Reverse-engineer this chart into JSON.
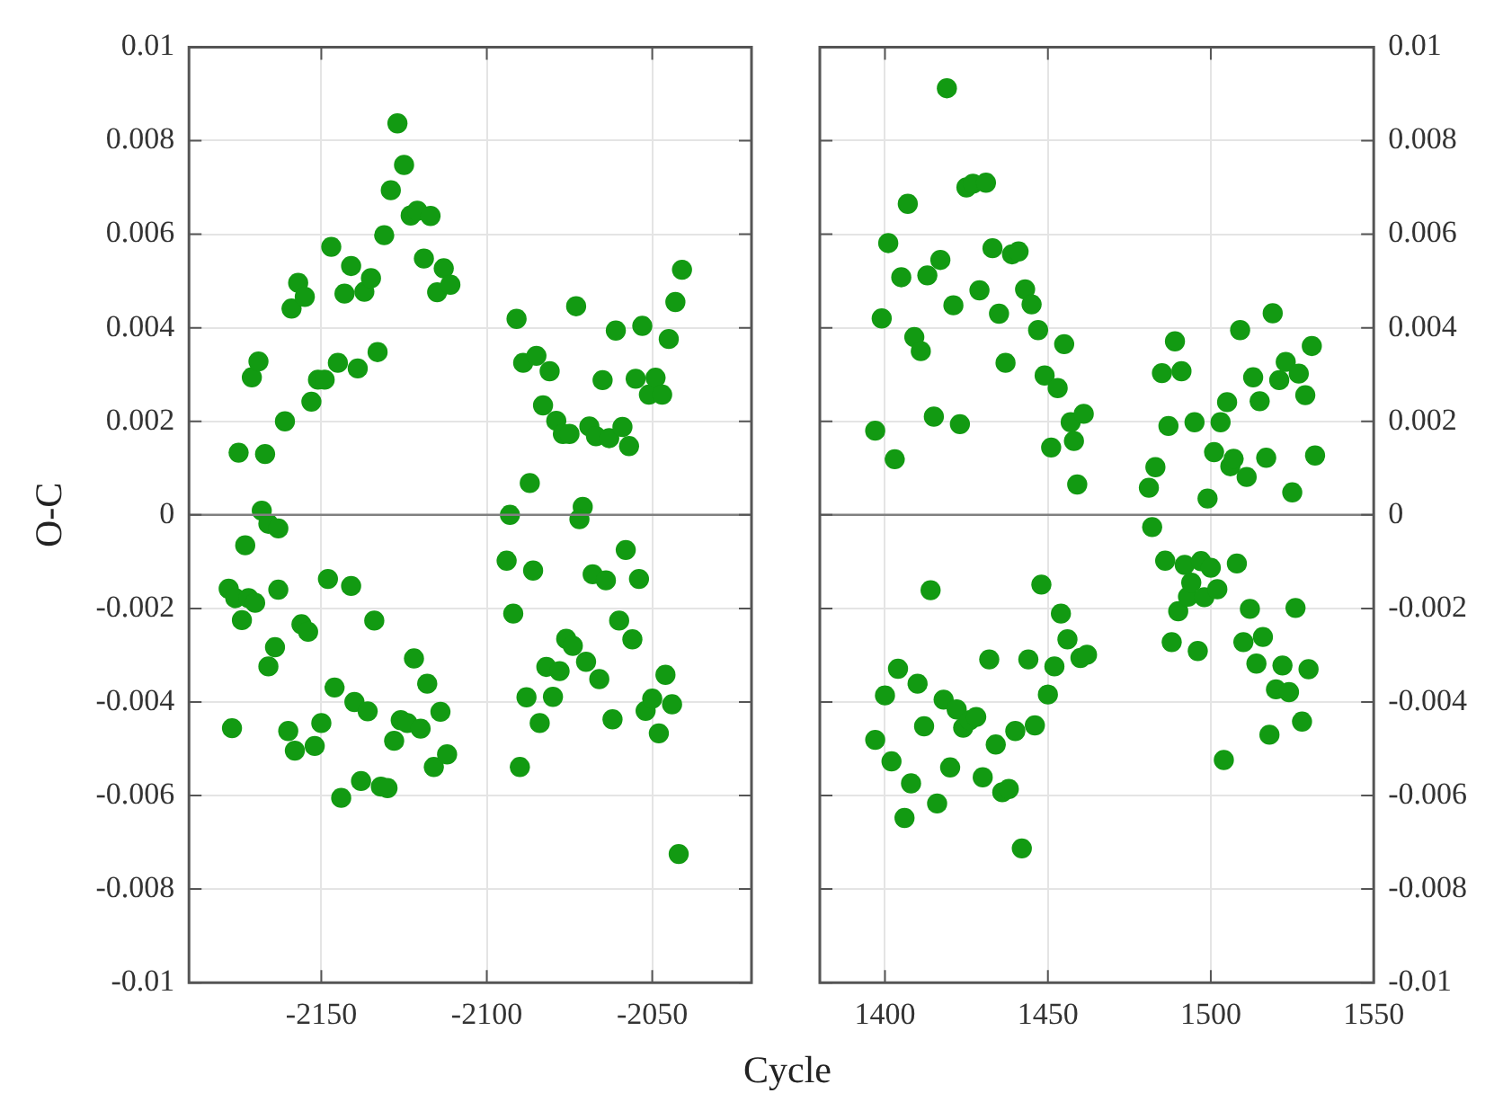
{
  "chart_data": [
    {
      "type": "scatter",
      "xlabel": "Cycle",
      "ylabel": "O-C",
      "marker": "circle",
      "grid": true,
      "xlim": [
        -2190,
        -2020
      ],
      "xticks": [
        -2150,
        -2100,
        -2050
      ],
      "ylim": [
        -0.01,
        0.01
      ],
      "yticks": [
        -0.01,
        -0.008,
        -0.006,
        -0.004,
        -0.002,
        0,
        0.002,
        0.004,
        0.006,
        0.008,
        0.01
      ],
      "ref_lines": [
        {
          "axis": "y",
          "value": 0,
          "color": "#808080"
        }
      ],
      "series": [
        {
          "color": "#129a12",
          "x": [
            -2175,
            -2171,
            -2169,
            -2167,
            -2168,
            -2161,
            -2159,
            -2157,
            -2155,
            -2153,
            -2151,
            -2149,
            -2147,
            -2145,
            -2143,
            -2141,
            -2139,
            -2137,
            -2135,
            -2133,
            -2131,
            -2129,
            -2127,
            -2125,
            -2123,
            -2121,
            -2119,
            -2117,
            -2115,
            -2113,
            -2111,
            -2093,
            -2091,
            -2089,
            -2087,
            -2085,
            -2083,
            -2081,
            -2079,
            -2077,
            -2075,
            -2073,
            -2071,
            -2069,
            -2067,
            -2065,
            -2063,
            -2061,
            -2059,
            -2057,
            -2055,
            -2053,
            -2051,
            -2049,
            -2047,
            -2045,
            -2043,
            -2041,
            -2166,
            -2163,
            -2173,
            -2178,
            -2176,
            -2172,
            -2170,
            -2174,
            -2163,
            -2164,
            -2166,
            -2177,
            -2160,
            -2158,
            -2156,
            -2154,
            -2152,
            -2150,
            -2148,
            -2146,
            -2144,
            -2141,
            -2140,
            -2138,
            -2136,
            -2134,
            -2132,
            -2130,
            -2128,
            -2126,
            -2124,
            -2122,
            -2120,
            -2118,
            -2116,
            -2114,
            -2112,
            -2094,
            -2092,
            -2090,
            -2088,
            -2086,
            -2084,
            -2082,
            -2080,
            -2078,
            -2076,
            -2074,
            -2072,
            -2070,
            -2068,
            -2066,
            -2064,
            -2062,
            -2060,
            -2058,
            -2056,
            -2054,
            -2052,
            -2050,
            -2048,
            -2046,
            -2044,
            -2042
          ],
          "values": [
            0.00133,
            0.00294,
            0.00328,
            0.0013,
            9e-05,
            0.002,
            0.00441,
            0.00496,
            0.00466,
            0.00242,
            0.00289,
            0.00289,
            0.00573,
            0.00325,
            0.00473,
            0.00532,
            0.00313,
            0.00477,
            0.00506,
            0.00348,
            0.00598,
            0.00694,
            0.00837,
            0.00748,
            0.0064,
            0.0065,
            0.00548,
            0.00639,
            0.00476,
            0.00527,
            0.00492,
            0,
            0.00419,
            0.00325,
            0.00068,
            0.0034,
            0.00234,
            0.00307,
            0.00201,
            0.00173,
            0.00173,
            0.00446,
            0.00017,
            0.00189,
            0.00168,
            0.00288,
            0.00164,
            0.00394,
            0.00188,
            0.00147,
            0.00291,
            0.00404,
            0.00257,
            0.00293,
            0.00257,
            0.00376,
            0.00455,
            0.00524,
            -0.00019,
            -0.00029,
            -0.00065,
            -0.00158,
            -0.00178,
            -0.00178,
            -0.00188,
            -0.00225,
            -0.0016,
            -0.00283,
            -0.00324,
            -0.00456,
            -0.00462,
            -0.00504,
            -0.00234,
            -0.0025,
            -0.00494,
            -0.00445,
            -0.00137,
            -0.00369,
            -0.00605,
            -0.00152,
            -0.004,
            -0.00569,
            -0.0042,
            -0.00226,
            -0.00581,
            -0.00584,
            -0.00483,
            -0.00439,
            -0.00445,
            -0.00307,
            -0.00457,
            -0.00361,
            -0.00539,
            -0.00421,
            -0.00512,
            -0.00098,
            -0.00211,
            -0.00539,
            -0.0039,
            -0.00119,
            -0.00445,
            -0.00325,
            -0.00389,
            -0.00334,
            -0.00265,
            -0.0028,
            -9e-05,
            -0.00314,
            -0.00127,
            -0.00351,
            -0.0014,
            -0.00437,
            -0.00226,
            -0.00075,
            -0.00266,
            -0.00137,
            -0.00419,
            -0.00393,
            -0.00467,
            -0.00342,
            -0.00405,
            -0.00725
          ]
        }
      ]
    },
    {
      "type": "scatter",
      "marker": "circle",
      "grid": true,
      "xlim": [
        1380,
        1550
      ],
      "xticks": [
        1400,
        1450,
        1500,
        1550
      ],
      "y2lim": [
        -0.01,
        0.01
      ],
      "y2ticks": [
        -0.01,
        -0.008,
        -0.006,
        -0.004,
        -0.002,
        0,
        0.002,
        0.004,
        0.006,
        0.008,
        0.01
      ],
      "ref_lines": [
        {
          "axis": "y2",
          "value": 0,
          "color": "#808080"
        }
      ],
      "series": [
        {
          "color": "#129a12",
          "axis": "y2",
          "x": [
            1397,
            1399,
            1401,
            1403,
            1405,
            1407,
            1409,
            1411,
            1413,
            1415,
            1417,
            1419,
            1421,
            1423,
            1425,
            1427,
            1429,
            1431,
            1433,
            1435,
            1437,
            1439,
            1441,
            1443,
            1445,
            1447,
            1449,
            1451,
            1453,
            1455,
            1457,
            1458,
            1459,
            1461,
            1481,
            1482,
            1483,
            1485,
            1487,
            1489,
            1491,
            1495,
            1499,
            1501,
            1503,
            1505,
            1506,
            1507,
            1509,
            1511,
            1513,
            1515,
            1517,
            1519,
            1521,
            1523,
            1525,
            1527,
            1529,
            1531,
            1532,
            1397,
            1400,
            1402,
            1404,
            1406,
            1408,
            1410,
            1412,
            1414,
            1416,
            1418,
            1420,
            1422,
            1424,
            1426,
            1428,
            1430,
            1432,
            1434,
            1436,
            1438,
            1440,
            1442,
            1444,
            1446,
            1448,
            1450,
            1452,
            1454,
            1456,
            1460,
            1462,
            1486,
            1488,
            1490,
            1492,
            1493,
            1494,
            1496,
            1497,
            1498,
            1500,
            1502,
            1504,
            1508,
            1510,
            1512,
            1514,
            1516,
            1518,
            1520,
            1522,
            1524,
            1526,
            1528,
            1530
          ],
          "values": [
            0.0018,
            0.0042,
            0.00581,
            0.00119,
            0.00508,
            0.00665,
            0.0038,
            0.0035,
            0.00512,
            0.0021,
            0.00545,
            0.00912,
            0.00448,
            0.00194,
            0.007,
            0.00708,
            0.0048,
            0.0071,
            0.0057,
            0.0043,
            0.00325,
            0.00557,
            0.00563,
            0.00482,
            0.0045,
            0.00395,
            0.00298,
            0.00144,
            0.00271,
            0.00365,
            0.00198,
            0.00158,
            0.00065,
            0.00216,
            0.00058,
            -0.00026,
            0.00102,
            0.00303,
            0.0019,
            0.00371,
            0.00307,
            0.00198,
            0.00035,
            0.00134,
            0.00198,
            0.00241,
            0.00104,
            0.0012,
            0.00395,
            0.00081,
            0.00294,
            0.00243,
            0.00122,
            0.00431,
            0.00288,
            0.00327,
            0.00048,
            0.00302,
            0.00256,
            0.00361,
            0.00127,
            -0.00481,
            -0.00386,
            -0.00527,
            -0.00329,
            -0.00648,
            -0.00574,
            -0.00361,
            -0.00452,
            -0.00161,
            -0.00617,
            -0.00395,
            -0.0054,
            -0.00416,
            -0.00455,
            -0.00439,
            -0.00432,
            -0.00561,
            -0.00309,
            -0.00491,
            -0.00593,
            -0.00586,
            -0.00462,
            -0.00713,
            -0.00309,
            -0.0045,
            -0.00149,
            -0.00384,
            -0.00324,
            -0.00211,
            -0.00266,
            -0.00306,
            -0.00299,
            -0.00098,
            -0.00272,
            -0.00206,
            -0.00107,
            -0.00175,
            -0.00145,
            -0.00291,
            -0.00099,
            -0.00176,
            -0.00113,
            -0.00159,
            -0.00524,
            -0.00104,
            -0.00272,
            -0.00201,
            -0.00318,
            -0.00261,
            -0.0047,
            -0.00373,
            -0.00322,
            -0.00379,
            -0.00199,
            -0.00442,
            -0.0033
          ]
        }
      ]
    }
  ]
}
